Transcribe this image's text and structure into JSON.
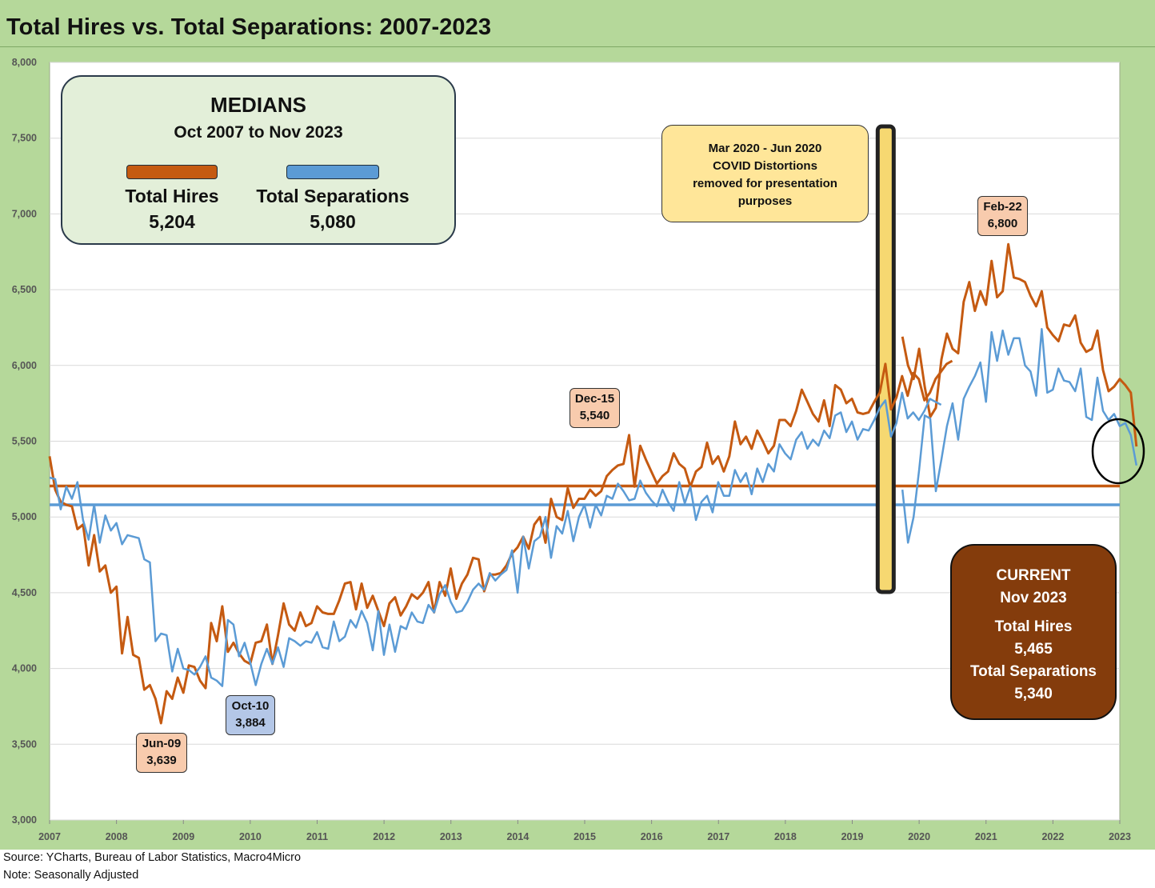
{
  "title": "Total Hires vs. Total Separations: 2007-2023",
  "footer": {
    "source": "Source: YCharts, Bureau of Labor Statistics, Macro4Micro",
    "note": "Note: Seasonally Adjusted"
  },
  "colors": {
    "hires": "#c55a11",
    "separations": "#5b9bd5",
    "covid_bar": "#f5d76e",
    "frame": "#b5d89a"
  },
  "medians_box": {
    "heading": "MEDIANS",
    "period": "Oct 2007 to Nov 2023",
    "hires_label": "Total Hires",
    "hires_value": "5,204",
    "separations_label": "Total Separations",
    "separations_value": "5,080"
  },
  "covid_note": {
    "line1": "Mar 2020 - Jun 2020",
    "line2": "COVID Distortions",
    "line3": "removed for presentation",
    "line4": "purposes"
  },
  "current_box": {
    "heading": "CURRENT",
    "month": "Nov 2023",
    "hires_label": "Total Hires",
    "hires_value": "5,465",
    "separations_label": "Total Separations",
    "separations_value": "5,340"
  },
  "callouts": {
    "jun09": {
      "date": "Jun-09",
      "value": "3,639"
    },
    "oct10": {
      "date": "Oct-10",
      "value": "3,884"
    },
    "dec15": {
      "date": "Dec-15",
      "value": "5,540"
    },
    "feb22": {
      "date": "Feb-22",
      "value": "6,800"
    }
  },
  "chart_data": {
    "type": "line",
    "title": "Total Hires vs. Total Separations: 2007-2023",
    "ylim": [
      3000,
      8000
    ],
    "yticks": [
      3000,
      3500,
      4000,
      4500,
      5000,
      5500,
      6000,
      6500,
      7000,
      7500,
      8000
    ],
    "ytick_labels": [
      "3,000",
      "3,500",
      "4,000",
      "4,500",
      "5,000",
      "5,500",
      "6,000",
      "6,500",
      "7,000",
      "7,500",
      "8,000"
    ],
    "xtick_labels": [
      "2007",
      "2008",
      "2009",
      "2010",
      "2011",
      "2012",
      "2013",
      "2014",
      "2015",
      "2016",
      "2017",
      "2018",
      "2019",
      "2020",
      "2021",
      "2022",
      "2023"
    ],
    "grid": true,
    "median_lines": [
      {
        "name": "Total Hires",
        "value": 5204
      },
      {
        "name": "Total Separations",
        "value": 5080
      }
    ],
    "gap": {
      "label": "Mar 2020 - Jun 2020",
      "after_x": 12.5
    },
    "series": [
      {
        "name": "Total Hires",
        "segments": [
          {
            "x_start": 0,
            "x_step": 0.0833,
            "values": [
              5400,
              5180,
              5100,
              5080,
              5070,
              4920,
              4950,
              4680,
              4880,
              4640,
              4680,
              4500,
              4540,
              4100,
              4340,
              4090,
              4070,
              3860,
              3890,
              3800,
              3639,
              3850,
              3800,
              3940,
              3840,
              4020,
              4010,
              3920,
              3870,
              4300,
              4180,
              4410,
              4110,
              4170,
              4100,
              4050,
              4030,
              4170,
              4180,
              4290,
              4030,
              4220,
              4430,
              4290,
              4250,
              4370,
              4280,
              4300,
              4410,
              4370,
              4360,
              4360,
              4450,
              4560,
              4570,
              4390,
              4560,
              4400,
              4480,
              4380,
              4280,
              4430,
              4470,
              4350,
              4410,
              4490,
              4460,
              4500,
              4570,
              4370,
              4570,
              4480,
              4660,
              4460,
              4560,
              4620,
              4730,
              4720,
              4510,
              4620,
              4620,
              4630,
              4680,
              4760,
              4800,
              4870,
              4790,
              4950,
              5000,
              4830,
              5120,
              5000,
              4980,
              5190,
              5060,
              5120,
              5120,
              5180,
              5140,
              5170,
              5270,
              5310,
              5340,
              5350,
              5540,
              5200,
              5470,
              5380,
              5300,
              5220,
              5270,
              5300,
              5420,
              5350,
              5320,
              5200,
              5300,
              5330,
              5490,
              5350,
              5400,
              5300,
              5400,
              5630,
              5480,
              5530,
              5450,
              5570,
              5500,
              5420,
              5470,
              5640,
              5640,
              5600,
              5700,
              5840,
              5760,
              5680,
              5630,
              5770,
              5600,
              5870,
              5840,
              5750,
              5780,
              5690,
              5680,
              5690,
              5760,
              5820,
              6010,
              5710,
              5790,
              5930,
              5800,
              5950,
              5910,
              5770,
              5820,
              5910,
              5960,
              6010,
              6030
            ]
          },
          {
            "x_start": 12.75,
            "x_step": 0.0833,
            "values": [
              6190,
              6000,
              5910,
              6110,
              5860,
              5660,
              5720,
              6040,
              6210,
              6110,
              6080,
              6420,
              6550,
              6360,
              6490,
              6400,
              6690,
              6450,
              6490,
              6800,
              6580,
              6570,
              6550,
              6460,
              6390,
              6490,
              6250,
              6200,
              6160,
              6270,
              6260,
              6330,
              6150,
              6090,
              6110,
              6230,
              5970,
              5830,
              5860,
              5910,
              5870,
              5820,
              5465
            ]
          }
        ]
      },
      {
        "name": "Total Separations",
        "segments": [
          {
            "x_start": 0,
            "x_step": 0.0833,
            "values": [
              5260,
              5250,
              5050,
              5200,
              5120,
              5230,
              4980,
              4850,
              5080,
              4830,
              5010,
              4910,
              4960,
              4820,
              4880,
              4870,
              4860,
              4720,
              4700,
              4180,
              4230,
              4220,
              3980,
              4130,
              4000,
              3990,
              3960,
              4010,
              4080,
              3940,
              3920,
              3884,
              4320,
              4290,
              4080,
              4170,
              4040,
              3890,
              4030,
              4130,
              4030,
              4140,
              4010,
              4200,
              4180,
              4150,
              4180,
              4170,
              4240,
              4140,
              4130,
              4310,
              4180,
              4210,
              4320,
              4270,
              4380,
              4300,
              4120,
              4380,
              4090,
              4290,
              4110,
              4280,
              4260,
              4370,
              4310,
              4300,
              4420,
              4370,
              4490,
              4550,
              4440,
              4370,
              4380,
              4440,
              4520,
              4560,
              4520,
              4630,
              4580,
              4620,
              4650,
              4780,
              4500,
              4870,
              4660,
              4840,
              4870,
              5000,
              4730,
              4940,
              4890,
              5040,
              4840,
              5000,
              5080,
              4930,
              5080,
              5010,
              5140,
              5120,
              5220,
              5170,
              5110,
              5120,
              5240,
              5160,
              5110,
              5070,
              5180,
              5100,
              5040,
              5230,
              5090,
              5200,
              4980,
              5100,
              5140,
              5030,
              5230,
              5140,
              5140,
              5310,
              5230,
              5290,
              5150,
              5320,
              5230,
              5350,
              5300,
              5480,
              5420,
              5380,
              5510,
              5560,
              5450,
              5510,
              5470,
              5570,
              5520,
              5670,
              5690,
              5560,
              5630,
              5510,
              5580,
              5570,
              5640,
              5720,
              5770,
              5530,
              5620,
              5820,
              5650,
              5690,
              5640,
              5700,
              5780,
              5760,
              5740
            ]
          },
          {
            "x_start": 12.75,
            "x_step": 0.0833,
            "values": [
              5180,
              4830,
              5000,
              5310,
              5670,
              5650,
              5170,
              5380,
              5600,
              5750,
              5510,
              5780,
              5860,
              5930,
              6020,
              5760,
              6220,
              6030,
              6230,
              6070,
              6180,
              6180,
              6000,
              5960,
              5800,
              6240,
              5820,
              5840,
              5980,
              5900,
              5890,
              5830,
              5980,
              5660,
              5640,
              5920,
              5700,
              5640,
              5680,
              5600,
              5620,
              5540,
              5340
            ]
          }
        ]
      }
    ]
  }
}
